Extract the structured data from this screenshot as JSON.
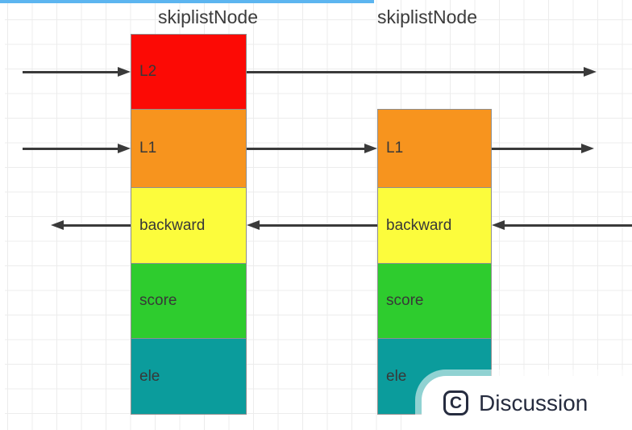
{
  "page": {
    "top_bar_color": "#5cb5f0",
    "grid_line_color": "#ececec",
    "background_color": "#ffffff"
  },
  "nodes": [
    {
      "title": "skiplistNode",
      "segments": [
        {
          "label": "L2",
          "color": "#fc0a05"
        },
        {
          "label": "L1",
          "color": "#f7941e"
        },
        {
          "label": "backward",
          "color": "#fcfc3c"
        },
        {
          "label": "score",
          "color": "#2ecc2e"
        },
        {
          "label": "ele",
          "color": "#0b9c9c"
        }
      ]
    },
    {
      "title": "skiplistNode",
      "segments": [
        {
          "label": "L1",
          "color": "#f7941e"
        },
        {
          "label": "backward",
          "color": "#fcfc3c"
        },
        {
          "label": "score",
          "color": "#2ecc2e"
        },
        {
          "label": "ele",
          "color": "#0b9c9c"
        }
      ]
    }
  ],
  "arrows": {
    "color": "#3a3a3a",
    "items": [
      {
        "name": "l2-into-node1",
        "direction": "right"
      },
      {
        "name": "l2-out-of-node1",
        "direction": "right"
      },
      {
        "name": "l1-into-node1",
        "direction": "right"
      },
      {
        "name": "l1-node1-to-node2",
        "direction": "right"
      },
      {
        "name": "l1-out-of-node2",
        "direction": "right"
      },
      {
        "name": "backward-from-node1",
        "direction": "left"
      },
      {
        "name": "backward-node2-to-node1",
        "direction": "left"
      },
      {
        "name": "backward-into-node2",
        "direction": "left"
      }
    ]
  },
  "badge": {
    "icon_letter": "C",
    "label": "Discussion",
    "color": "#262c3f"
  }
}
